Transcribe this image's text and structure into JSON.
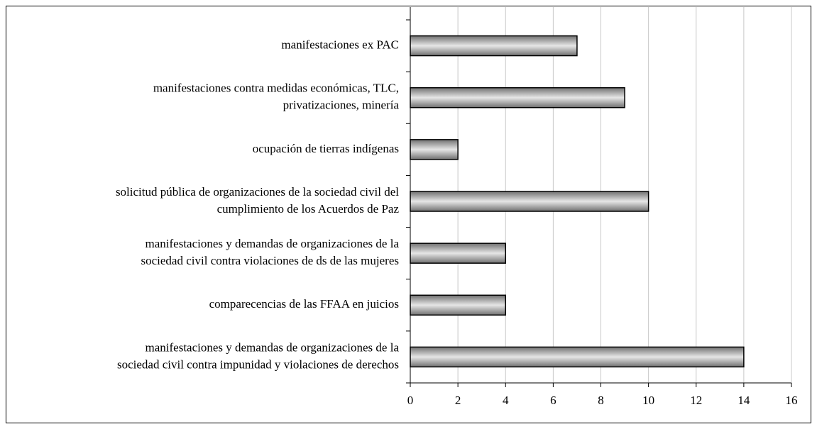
{
  "chart_data": {
    "type": "bar",
    "orientation": "horizontal",
    "categories": [
      [
        "manifestaciones ex PAC"
      ],
      [
        "manifestaciones contra medidas económicas, TLC,",
        "privatizaciones, minería"
      ],
      [
        "ocupación de tierras indígenas"
      ],
      [
        "solicitud pública de organizaciones de la sociedad civil del",
        "cumplimiento de los Acuerdos de Paz"
      ],
      [
        "manifestaciones y demandas de organizaciones de la",
        "sociedad civil contra violaciones de ds de las mujeres"
      ],
      [
        "comparecencias de las FFAA en juicios"
      ],
      [
        "manifestaciones y demandas de organizaciones de la",
        "sociedad civil contra impunidad y violaciones de derechos"
      ]
    ],
    "values": [
      7,
      9,
      2,
      10,
      4,
      4,
      14
    ],
    "color": "#707070",
    "xlim": [
      0,
      16
    ],
    "xticks": [
      0,
      2,
      4,
      6,
      8,
      10,
      12,
      14,
      16
    ],
    "grid": true
  }
}
